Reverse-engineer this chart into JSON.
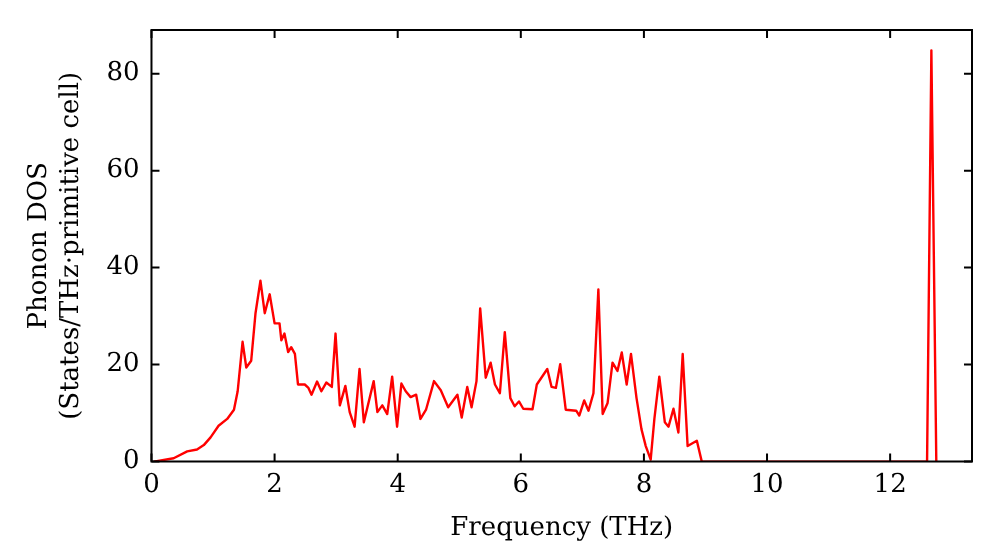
{
  "chart_data": {
    "type": "line",
    "xlabel": "Frequency (THz)",
    "ylabel": "Phonon DOS\n(States/THz·primitive cell)",
    "x": [
      0.04,
      0.36,
      0.58,
      0.74,
      0.85,
      0.96,
      1.09,
      1.23,
      1.34,
      1.4,
      1.48,
      1.54,
      1.62,
      1.69,
      1.77,
      1.84,
      1.92,
      2.0,
      2.08,
      2.11,
      2.16,
      2.22,
      2.27,
      2.33,
      2.38,
      2.49,
      2.55,
      2.6,
      2.69,
      2.76,
      2.84,
      2.93,
      2.99,
      3.06,
      3.15,
      3.22,
      3.3,
      3.38,
      3.45,
      3.61,
      3.67,
      3.75,
      3.83,
      3.91,
      3.99,
      4.06,
      4.13,
      4.21,
      4.3,
      4.37,
      4.46,
      4.59,
      4.7,
      4.82,
      4.97,
      5.04,
      5.13,
      5.2,
      5.28,
      5.34,
      5.43,
      5.51,
      5.58,
      5.66,
      5.74,
      5.83,
      5.9,
      5.97,
      6.04,
      6.19,
      6.26,
      6.43,
      6.5,
      6.57,
      6.64,
      6.73,
      6.9,
      6.95,
      7.03,
      7.1,
      7.18,
      7.26,
      7.33,
      7.41,
      7.49,
      7.57,
      7.64,
      7.72,
      7.79,
      7.88,
      7.96,
      8.03,
      8.11,
      8.17,
      8.25,
      8.34,
      8.4,
      8.48,
      8.56,
      8.63,
      8.71,
      8.86,
      8.94,
      12.6,
      12.67,
      12.75
    ],
    "series": [
      {
        "color": "#ff0000",
        "values": [
          0,
          0.7,
          2.1,
          2.5,
          3.4,
          5,
          7.4,
          8.8,
          10.7,
          14.5,
          24.7,
          19.4,
          20.8,
          30.6,
          37.3,
          30.6,
          34.5,
          28.5,
          28.5,
          25,
          26.4,
          22.6,
          23.6,
          22.2,
          15.9,
          15.9,
          15.2,
          13.8,
          16.5,
          14.5,
          16.3,
          15.4,
          26.4,
          11.6,
          15.6,
          10.2,
          7.2,
          19.1,
          8.1,
          16.6,
          10.2,
          11.6,
          9.8,
          17.5,
          7.2,
          16.1,
          14.5,
          13.3,
          13.8,
          8.8,
          10.7,
          16.6,
          14.7,
          11.2,
          13.8,
          9.1,
          15.4,
          11.2,
          16.6,
          31.6,
          17.3,
          20.4,
          15.9,
          14.1,
          26.7,
          13.1,
          11.4,
          12.4,
          10.9,
          10.8,
          15.9,
          19.1,
          15.4,
          15.2,
          20.1,
          10.7,
          10.5,
          9.5,
          12.6,
          10.5,
          14.1,
          35.5,
          9.8,
          12.1,
          20.4,
          18.7,
          22.5,
          15.9,
          22.2,
          13.1,
          6.7,
          3.2,
          0.4,
          8.8,
          17.5,
          8.1,
          7.2,
          10.9,
          6,
          22.2,
          3.2,
          4.3,
          0,
          0,
          84.8,
          0
        ]
      }
    ],
    "xlim": [
      0,
      13.33
    ],
    "ylim": [
      0,
      89
    ],
    "xticks": [
      0,
      2,
      4,
      6,
      8,
      10,
      12
    ],
    "yticks": [
      0,
      20,
      40,
      60,
      80
    ],
    "grid": false,
    "legend": false,
    "marker": "none",
    "line_style": "solid"
  }
}
